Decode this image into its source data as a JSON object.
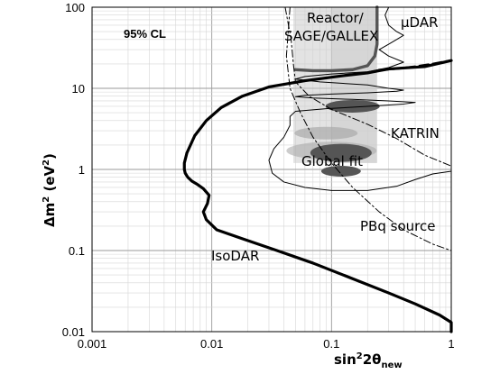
{
  "chart_data": {
    "type": "line",
    "x_scale": "log",
    "y_scale": "log",
    "xlim": [
      0.001,
      1
    ],
    "ylim": [
      0.01,
      100
    ],
    "grid": true,
    "x_ticks": [
      "0.001",
      "0.01",
      "0.1",
      "1"
    ],
    "y_ticks": [
      "100",
      "10",
      "1",
      "0.1",
      "0.01"
    ],
    "xlabel": {
      "main": "sin",
      "sup": "2",
      "mid": "2θ",
      "sub": "new"
    },
    "ylabel": {
      "main": "Δm",
      "sup": "2",
      "unit": " (eV",
      "unit_sup": "2",
      "close": ")"
    },
    "confidence_label": "95% CL",
    "labels": {
      "reactor": "Reactor/",
      "sage": "SAGE/GALLEX",
      "mudar": "μDAR",
      "katrin": "KATRIN",
      "global": "Global fit",
      "pbq": "PBq source",
      "isodar": "IsoDAR"
    },
    "series": [
      {
        "name": "IsoDAR",
        "style": "thick-solid",
        "points": [
          [
            1,
            0.01
          ],
          [
            1,
            0.013
          ],
          [
            0.8,
            0.016
          ],
          [
            0.5,
            0.022
          ],
          [
            0.3,
            0.03
          ],
          [
            0.15,
            0.045
          ],
          [
            0.07,
            0.07
          ],
          [
            0.035,
            0.1
          ],
          [
            0.018,
            0.14
          ],
          [
            0.011,
            0.18
          ],
          [
            0.009,
            0.24
          ],
          [
            0.0085,
            0.3
          ],
          [
            0.0092,
            0.38
          ],
          [
            0.0095,
            0.48
          ],
          [
            0.0085,
            0.58
          ],
          [
            0.0075,
            0.66
          ],
          [
            0.0068,
            0.72
          ],
          [
            0.0063,
            0.8
          ],
          [
            0.006,
            0.9
          ],
          [
            0.0059,
            1.0
          ],
          [
            0.0059,
            1.2
          ],
          [
            0.0062,
            1.6
          ],
          [
            0.0072,
            2.6
          ],
          [
            0.009,
            4
          ],
          [
            0.012,
            5.8
          ],
          [
            0.018,
            8
          ],
          [
            0.03,
            10.4
          ],
          [
            0.06,
            12.4
          ],
          [
            0.12,
            14.2
          ],
          [
            0.2,
            15.5
          ],
          [
            0.25,
            16.5
          ],
          [
            0.3,
            17.3
          ],
          [
            0.4,
            17.8
          ],
          [
            0.6,
            18.5
          ],
          [
            1,
            22
          ]
        ]
      },
      {
        "name": "Reactor/SAGE/GALLEX",
        "style": "thick-gray",
        "points": [
          [
            0.24,
            100
          ],
          [
            0.24,
            35
          ],
          [
            0.23,
            25
          ],
          [
            0.2,
            19
          ],
          [
            0.15,
            17
          ],
          [
            0.1,
            16.5
          ],
          [
            0.07,
            16.5
          ],
          [
            0.05,
            17
          ]
        ]
      },
      {
        "name": "KATRIN",
        "style": "dash-dot",
        "points": [
          [
            0.041,
            100
          ],
          [
            0.046,
            40
          ],
          [
            0.048,
            20
          ],
          [
            0.05,
            12
          ],
          [
            0.065,
            8
          ],
          [
            0.1,
            5.5
          ],
          [
            0.2,
            3.6
          ],
          [
            0.35,
            2.4
          ],
          [
            0.6,
            1.5
          ],
          [
            1,
            1.1
          ]
        ]
      },
      {
        "name": "PBq source",
        "style": "dash-dot",
        "points": [
          [
            0.045,
            100
          ],
          [
            0.042,
            25
          ],
          [
            0.045,
            10
          ],
          [
            0.055,
            5
          ],
          [
            0.07,
            2.5
          ],
          [
            0.1,
            1.2
          ],
          [
            0.15,
            0.6
          ],
          [
            0.25,
            0.3
          ],
          [
            0.4,
            0.18
          ],
          [
            0.7,
            0.12
          ],
          [
            1,
            0.1
          ]
        ]
      },
      {
        "name": "μDAR",
        "style": "thin-wiggle",
        "points": [
          [
            0.3,
            100
          ],
          [
            0.28,
            80
          ],
          [
            0.3,
            60
          ],
          [
            0.35,
            50
          ],
          [
            0.4,
            45
          ],
          [
            0.35,
            40
          ],
          [
            0.3,
            35
          ],
          [
            0.25,
            30
          ],
          [
            0.3,
            25
          ],
          [
            0.4,
            21
          ],
          [
            0.3,
            18
          ],
          [
            0.2,
            16
          ],
          [
            0.1,
            15
          ],
          [
            0.06,
            14
          ],
          [
            0.05,
            13
          ],
          [
            0.08,
            12
          ],
          [
            0.2,
            11
          ],
          [
            0.3,
            10
          ],
          [
            0.4,
            9.5
          ],
          [
            0.35,
            9.2
          ],
          [
            0.2,
            8.8
          ],
          [
            0.1,
            8.5
          ],
          [
            0.06,
            8.2
          ],
          [
            0.05,
            7.9
          ],
          [
            0.07,
            7.6
          ],
          [
            0.15,
            7.3
          ],
          [
            0.3,
            7.0
          ],
          [
            0.5,
            6.7
          ],
          [
            0.4,
            6.4
          ],
          [
            0.2,
            6.0
          ],
          [
            0.09,
            5.6
          ],
          [
            0.05,
            5.2
          ],
          [
            0.045,
            4.5
          ],
          [
            0.045,
            3.5
          ],
          [
            0.04,
            2.5
          ],
          [
            0.033,
            1.8
          ],
          [
            0.03,
            1.3
          ],
          [
            0.032,
            0.9
          ],
          [
            0.04,
            0.7
          ],
          [
            0.06,
            0.6
          ],
          [
            0.1,
            0.55
          ],
          [
            0.2,
            0.55
          ],
          [
            0.35,
            0.62
          ],
          [
            0.5,
            0.75
          ],
          [
            0.7,
            0.88
          ],
          [
            1,
            0.95
          ]
        ]
      },
      {
        "name": "μDAR-dashed",
        "style": "thick-dashed",
        "points": [
          [
            0.25,
            16.8
          ],
          [
            0.35,
            17.5
          ],
          [
            0.5,
            18.5
          ],
          [
            0.7,
            20
          ],
          [
            1,
            22
          ]
        ]
      }
    ],
    "regions": [
      {
        "name": "Reactor/SAGE/GALLEX",
        "fill": "#cccccc"
      },
      {
        "name": "Global fit light",
        "fill": "#aaaaaa"
      },
      {
        "name": "Global fit dark",
        "fill": "#555555"
      }
    ]
  }
}
